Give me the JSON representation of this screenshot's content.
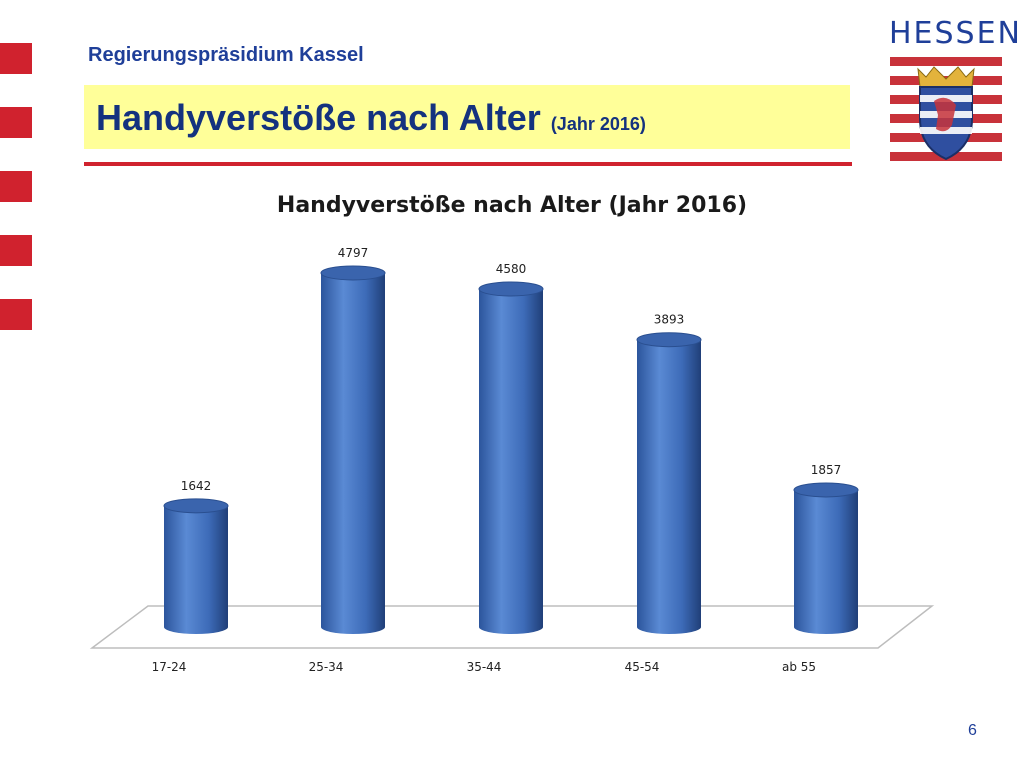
{
  "header": {
    "organization": "Regierungspräsidium Kassel",
    "title_main": "Handyverstöße nach Alter",
    "title_sub": "(Jahr 2016)",
    "brand": "HESSEN"
  },
  "colors": {
    "accent_red": "#d0222e",
    "title_blue": "#14327f",
    "title_bg": "#ffff99",
    "bar_blue": "#4f7dc8"
  },
  "icons": {
    "crest": "hessen-coat-of-arms-icon"
  },
  "chart_data": {
    "type": "bar",
    "title": "Handyverstöße nach Alter (Jahr 2016)",
    "categories": [
      "17-24",
      "25-34",
      "35-44",
      "45-54",
      "ab 55"
    ],
    "values": [
      1642,
      4797,
      4580,
      3893,
      1857
    ],
    "value_labels": [
      "1642",
      "4797",
      "4580",
      "3893",
      "1857"
    ],
    "xlabel": "",
    "ylabel": "",
    "ylim": [
      0,
      5000
    ],
    "grid": false,
    "legend": "none",
    "style": "3d-cylinder"
  },
  "footer": {
    "page_number": "6"
  }
}
